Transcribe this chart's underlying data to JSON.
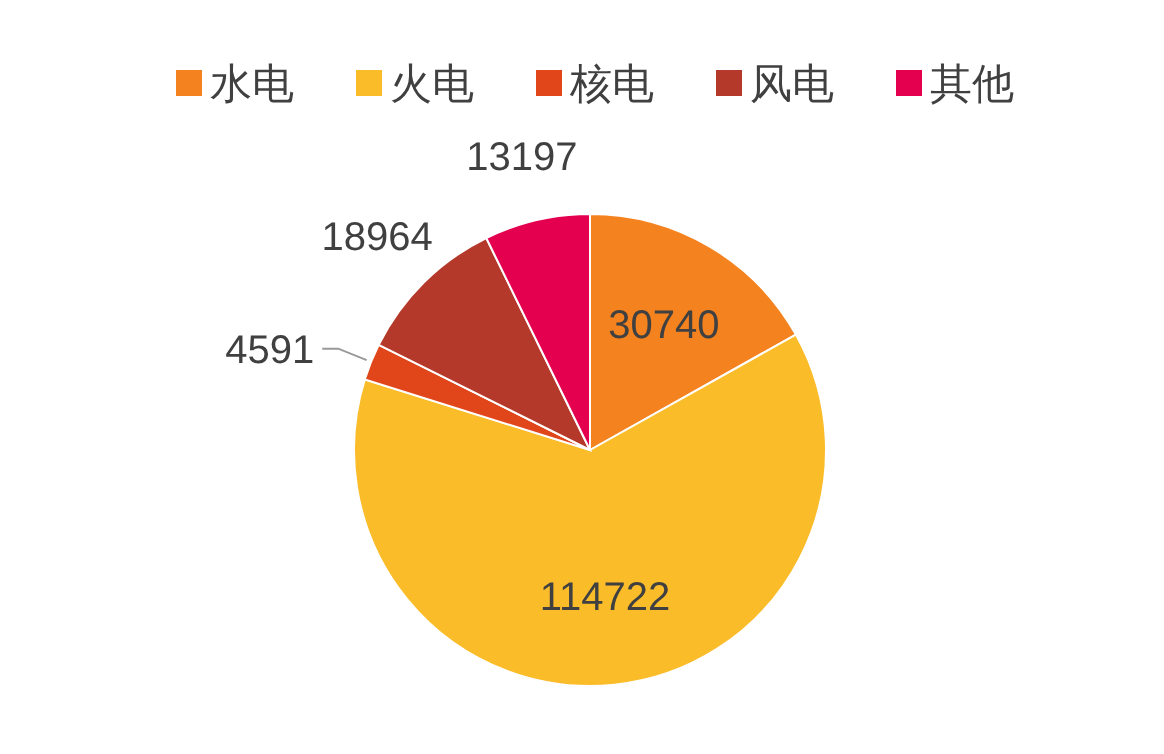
{
  "chart_data": {
    "type": "pie",
    "categories": [
      "水电",
      "火电",
      "核电",
      "风电",
      "其他"
    ],
    "values": [
      30740,
      114722,
      4591,
      18964,
      13197
    ],
    "colors": [
      "#f4821f",
      "#fbbc2a",
      "#e0461a",
      "#b5392a",
      "#e5004f"
    ],
    "data_labels": true,
    "legend": "top"
  }
}
